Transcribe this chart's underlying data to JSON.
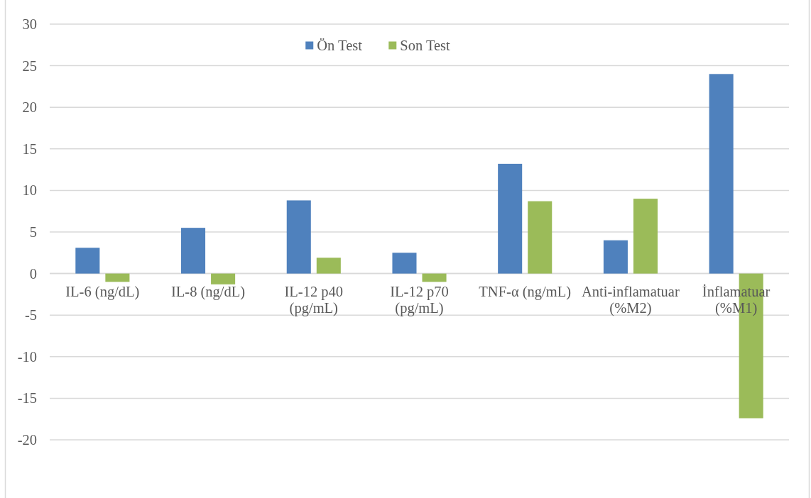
{
  "chart_data": {
    "type": "bar",
    "categories": [
      "IL-6 (ng/dL)",
      "IL-8 (ng/dL)",
      "IL-12 p40 (pg/mL)",
      "IL-12 p70 (pg/mL)",
      "TNF-α (ng/mL)",
      "Anti-inflamatuar (%M2)",
      "İnflamatuar (%M1)"
    ],
    "series": [
      {
        "name": "Ön Test",
        "color": "#4f81bd",
        "values": [
          3.1,
          5.5,
          8.8,
          2.5,
          13.2,
          4.0,
          24.0
        ]
      },
      {
        "name": "Son Test",
        "color": "#9bbb59",
        "values": [
          -1.0,
          -1.3,
          1.9,
          -1.0,
          8.7,
          9.0,
          -17.4
        ]
      }
    ],
    "ylim": [
      -20,
      30
    ],
    "yticks": [
      -20,
      -15,
      -10,
      -5,
      0,
      5,
      10,
      15,
      20,
      25,
      30
    ],
    "grid": "y",
    "legend": "top"
  }
}
